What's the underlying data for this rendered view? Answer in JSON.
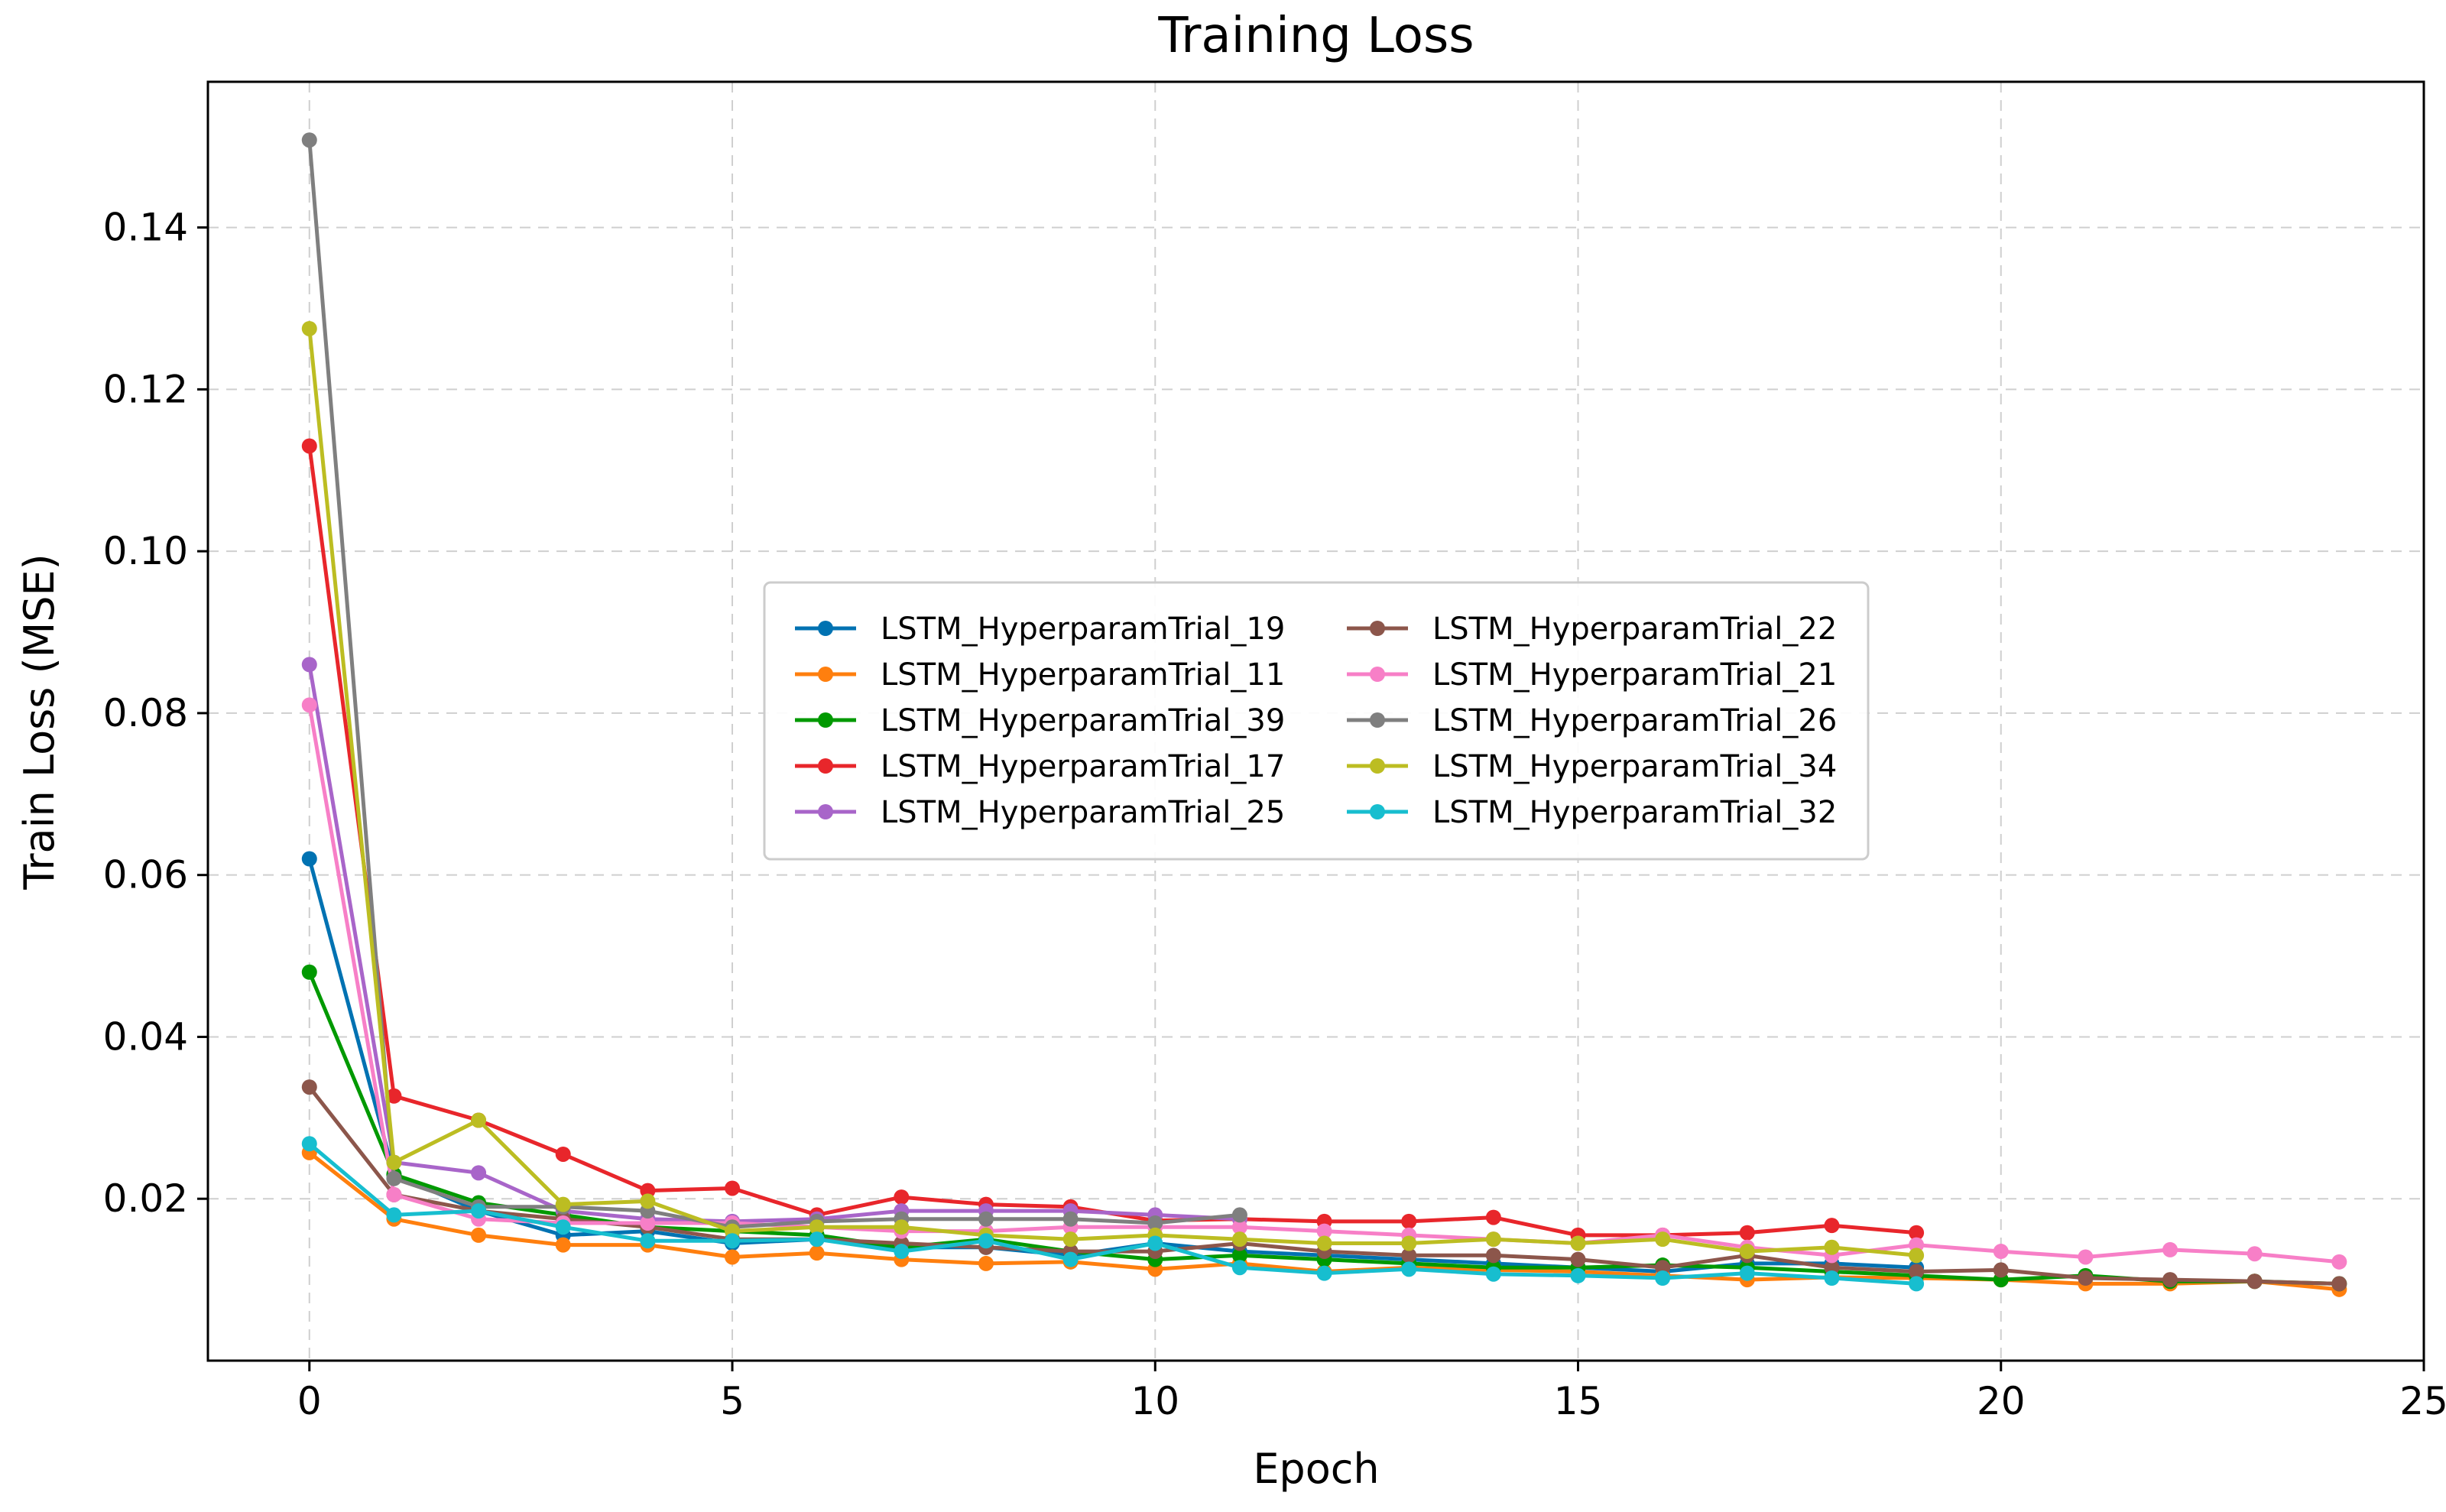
{
  "chart_data": {
    "type": "line",
    "title": "Training Loss",
    "xlabel": "Epoch",
    "ylabel": "Train Loss (MSE)",
    "xlim": [
      -1.2,
      25
    ],
    "ylim": [
      0.0,
      0.158
    ],
    "xticks": [
      0,
      5,
      10,
      15,
      20,
      25
    ],
    "yticks": [
      0.02,
      0.04,
      0.06,
      0.08,
      0.1,
      0.12,
      0.14
    ],
    "ytick_labels": [
      "0.02",
      "0.04",
      "0.06",
      "0.08",
      "0.10",
      "0.12",
      "0.14"
    ],
    "xtick_labels": [
      "0",
      "5",
      "10",
      "15",
      "20",
      "25"
    ],
    "grid": true,
    "legend_position": "center",
    "series": [
      {
        "name": "LSTM_HyperparamTrial_19",
        "color": "#0072b2",
        "values": [
          0.062,
          0.023,
          0.0185,
          0.0155,
          0.016,
          0.0145,
          0.015,
          0.014,
          0.014,
          0.013,
          0.0145,
          0.0135,
          0.013,
          0.0125,
          0.012,
          0.0115,
          0.011,
          0.012,
          0.012,
          0.0115
        ]
      },
      {
        "name": "LSTM_HyperparamTrial_11",
        "color": "#ff7f0e",
        "values": [
          0.0257,
          0.0175,
          0.0155,
          0.0143,
          0.0143,
          0.0128,
          0.0133,
          0.0125,
          0.012,
          0.0122,
          0.0113,
          0.012,
          0.011,
          0.0115,
          0.0112,
          0.011,
          0.0105,
          0.01,
          0.0103,
          0.0102,
          0.01,
          0.0095,
          0.0095,
          0.0098,
          0.0088
        ]
      },
      {
        "name": "LSTM_HyperparamTrial_39",
        "color": "#009900",
        "values": [
          0.048,
          0.023,
          0.0195,
          0.018,
          0.0165,
          0.016,
          0.0155,
          0.014,
          0.015,
          0.0135,
          0.0125,
          0.013,
          0.0125,
          0.012,
          0.0115,
          0.0115,
          0.0118,
          0.0115,
          0.011,
          0.0105,
          0.01,
          0.0105,
          0.0098,
          0.0098,
          0.0095
        ]
      },
      {
        "name": "LSTM_HyperparamTrial_17",
        "color": "#e8262b",
        "values": [
          0.113,
          0.0327,
          0.0297,
          0.0255,
          0.021,
          0.0213,
          0.018,
          0.0202,
          0.0193,
          0.019,
          0.0173,
          0.0175,
          0.0172,
          0.0172,
          0.0177,
          0.0155,
          0.0155,
          0.0158,
          0.0167,
          0.0158
        ]
      },
      {
        "name": "LSTM_HyperparamTrial_25",
        "color": "#a865c9",
        "values": [
          0.086,
          0.0245,
          0.0232,
          0.0185,
          0.0175,
          0.0172,
          0.0175,
          0.0185,
          0.0185,
          0.0185,
          0.018,
          0.0175
        ]
      },
      {
        "name": "LSTM_HyperparamTrial_22",
        "color": "#8c564b",
        "values": [
          0.0338,
          0.0205,
          0.0185,
          0.0175,
          0.0165,
          0.015,
          0.015,
          0.0145,
          0.014,
          0.0135,
          0.0135,
          0.0145,
          0.0135,
          0.013,
          0.013,
          0.0125,
          0.0115,
          0.013,
          0.0115,
          0.011,
          0.0112,
          0.0102,
          0.01,
          0.0098,
          0.0095
        ]
      },
      {
        "name": "LSTM_HyperparamTrial_21",
        "color": "#f77fc7",
        "values": [
          0.081,
          0.0205,
          0.0175,
          0.017,
          0.017,
          0.017,
          0.0165,
          0.016,
          0.016,
          0.0165,
          0.0165,
          0.0165,
          0.016,
          0.0155,
          0.015,
          0.0145,
          0.0155,
          0.014,
          0.013,
          0.0143,
          0.0135,
          0.0128,
          0.0137,
          0.0132,
          0.0122
        ]
      },
      {
        "name": "LSTM_HyperparamTrial_26",
        "color": "#7f7f7f",
        "values": [
          0.1508,
          0.0225,
          0.019,
          0.019,
          0.0185,
          0.0165,
          0.0172,
          0.0175,
          0.0175,
          0.0175,
          0.017,
          0.018
        ]
      },
      {
        "name": "LSTM_HyperparamTrial_34",
        "color": "#bcbd22",
        "values": [
          0.1275,
          0.0245,
          0.0297,
          0.0193,
          0.0197,
          0.016,
          0.0165,
          0.0165,
          0.0155,
          0.015,
          0.0155,
          0.015,
          0.0145,
          0.0145,
          0.015,
          0.0145,
          0.015,
          0.0135,
          0.014,
          0.013
        ]
      },
      {
        "name": "LSTM_HyperparamTrial_32",
        "color": "#17becf",
        "values": [
          0.0268,
          0.018,
          0.0185,
          0.0165,
          0.0148,
          0.0148,
          0.015,
          0.0135,
          0.0148,
          0.0125,
          0.0145,
          0.0115,
          0.0108,
          0.0113,
          0.0107,
          0.0105,
          0.0102,
          0.0108,
          0.0102,
          0.0095
        ]
      }
    ]
  }
}
